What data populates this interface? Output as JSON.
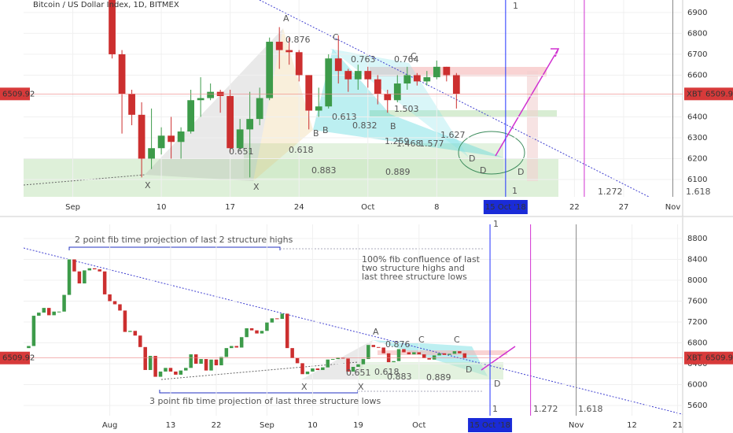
{
  "chart_data": [
    {
      "type": "candlestick",
      "title": "Bitcoin / US Dollar Index, 1D, BITMEX",
      "x": [
        "2018-09-05",
        "2018-09-06",
        "2018-09-07",
        "2018-09-08",
        "2018-09-09",
        "2018-09-10",
        "2018-09-11",
        "2018-09-12",
        "2018-09-13",
        "2018-09-14",
        "2018-09-15",
        "2018-09-16",
        "2018-09-17",
        "2018-09-18",
        "2018-09-19",
        "2018-09-20",
        "2018-09-21",
        "2018-09-22",
        "2018-09-23",
        "2018-09-24",
        "2018-09-25",
        "2018-09-26",
        "2018-09-27",
        "2018-09-28",
        "2018-09-29",
        "2018-09-30",
        "2018-10-01",
        "2018-10-02",
        "2018-10-03",
        "2018-10-04",
        "2018-10-05",
        "2018-10-06",
        "2018-10-07",
        "2018-10-08",
        "2018-10-09",
        "2018-10-10"
      ],
      "open": [
        7360,
        6700,
        6510,
        6410,
        6200,
        6250,
        6310,
        6280,
        6330,
        6480,
        6490,
        6520,
        6500,
        6250,
        6340,
        6390,
        6490,
        6760,
        6720,
        6710,
        6600,
        6430,
        6450,
        6680,
        6620,
        6580,
        6620,
        6580,
        6510,
        6480,
        6560,
        6600,
        6570,
        6590,
        6640,
        6600
      ],
      "high": [
        7400,
        6720,
        6530,
        6470,
        6440,
        6350,
        6400,
        6350,
        6530,
        6590,
        6560,
        6530,
        6530,
        6390,
        6520,
        6540,
        6780,
        6830,
        6780,
        6720,
        6600,
        6540,
        6700,
        6790,
        6630,
        6650,
        6640,
        6600,
        6530,
        6600,
        6640,
        6610,
        6620,
        6670,
        6640,
        6610
      ],
      "low": [
        6680,
        6320,
        6360,
        6110,
        6150,
        6220,
        6200,
        6200,
        6320,
        6400,
        6480,
        6420,
        6230,
        6240,
        6110,
        6360,
        6480,
        6630,
        6650,
        6570,
        6340,
        6400,
        6440,
        6560,
        6520,
        6530,
        6540,
        6460,
        6420,
        6470,
        6530,
        6550,
        6550,
        6580,
        6570,
        6440
      ],
      "close": [
        6700,
        6510,
        6410,
        6200,
        6250,
        6310,
        6280,
        6330,
        6480,
        6490,
        6520,
        6500,
        6250,
        6340,
        6390,
        6490,
        6760,
        6720,
        6710,
        6600,
        6430,
        6450,
        6680,
        6620,
        6580,
        6620,
        6580,
        6510,
        6480,
        6560,
        6600,
        6570,
        6590,
        6640,
        6600,
        6510
      ],
      "up_color": "#3d9b4a",
      "down_color": "#cc2f2f",
      "xlim": [
        "2018-08-27",
        "2018-11-02"
      ],
      "ylim": [
        6017,
        6960
      ],
      "yticks": [
        6100,
        6200,
        6300,
        6400,
        6500,
        6600,
        6700,
        6800,
        6900
      ],
      "xticks": [
        {
          "value": "2018-09-01",
          "label": "Sep"
        },
        {
          "value": "2018-09-10",
          "label": "10"
        },
        {
          "value": "2018-09-17",
          "label": "17"
        },
        {
          "value": "2018-09-24",
          "label": "24"
        },
        {
          "value": "2018-10-01",
          "label": "Oct"
        },
        {
          "value": "2018-10-08",
          "label": "8"
        },
        {
          "value": "2018-10-22",
          "label": "22"
        },
        {
          "value": "2018-10-27",
          "label": "27"
        },
        {
          "value": "2018-11-01",
          "label": "Nov"
        }
      ],
      "highlight_tick": {
        "value": "2018-10-15",
        "label": "15 Oct '18"
      },
      "last_price": 6509.92,
      "symbol": "XBT",
      "vlines": [
        {
          "x": "2018-10-15",
          "color": "#2030ff"
        },
        {
          "x": "2018-10-23",
          "color": "#d030d0"
        },
        {
          "x": "2018-11-01",
          "color": "#888888"
        }
      ],
      "annotations": [
        "X",
        "A",
        "0.876",
        "0.651",
        "0.618",
        "0.883",
        "0.889",
        "X",
        "B",
        "B",
        "C",
        "D",
        "D",
        "D",
        "1.272",
        "1.618",
        "1",
        "1",
        "0.613",
        "1.503",
        "1.468",
        "1.577",
        "1.627",
        "B",
        "C",
        "0.763",
        "0.764",
        "0.832",
        "1.259"
      ]
    },
    {
      "type": "candlestick",
      "x": [
        "2018-07-16",
        "2018-07-17",
        "2018-07-18",
        "2018-07-19",
        "2018-07-20",
        "2018-07-21",
        "2018-07-22",
        "2018-07-23",
        "2018-07-24",
        "2018-07-25",
        "2018-07-26",
        "2018-07-27",
        "2018-07-28",
        "2018-07-29",
        "2018-07-30",
        "2018-07-31",
        "2018-08-01",
        "2018-08-02",
        "2018-08-03",
        "2018-08-04",
        "2018-08-05",
        "2018-08-06",
        "2018-08-07",
        "2018-08-08",
        "2018-08-09",
        "2018-08-10",
        "2018-08-11",
        "2018-08-12",
        "2018-08-13",
        "2018-08-14",
        "2018-08-15",
        "2018-08-16",
        "2018-08-17",
        "2018-08-18",
        "2018-08-19",
        "2018-08-20",
        "2018-08-21",
        "2018-08-22",
        "2018-08-23",
        "2018-08-24",
        "2018-08-25",
        "2018-08-26",
        "2018-08-27",
        "2018-08-28",
        "2018-08-29",
        "2018-08-30",
        "2018-08-31",
        "2018-09-01",
        "2018-09-02",
        "2018-09-03",
        "2018-09-04",
        "2018-09-05",
        "2018-09-06",
        "2018-09-07",
        "2018-09-08",
        "2018-09-09",
        "2018-09-10",
        "2018-09-11",
        "2018-09-12",
        "2018-09-13",
        "2018-09-14",
        "2018-09-15",
        "2018-09-16",
        "2018-09-17",
        "2018-09-18",
        "2018-09-19",
        "2018-09-20",
        "2018-09-21",
        "2018-09-22",
        "2018-09-23",
        "2018-09-24",
        "2018-09-25",
        "2018-09-26",
        "2018-09-27",
        "2018-09-28",
        "2018-09-29",
        "2018-09-30",
        "2018-10-01",
        "2018-10-02",
        "2018-10-03",
        "2018-10-04",
        "2018-10-05",
        "2018-10-06",
        "2018-10-07",
        "2018-10-08",
        "2018-10-09",
        "2018-10-10"
      ],
      "open": [
        6700,
        6740,
        7320,
        7380,
        7470,
        7330,
        7400,
        7400,
        7720,
        8400,
        8170,
        7940,
        8190,
        8230,
        8210,
        8170,
        7730,
        7600,
        7540,
        7420,
        7010,
        7030,
        6940,
        6720,
        6280,
        6550,
        6150,
        6250,
        6320,
        6250,
        6190,
        6270,
        6320,
        6580,
        6400,
        6490,
        6270,
        6480,
        6370,
        6530,
        6700,
        6740,
        6710,
        6910,
        7080,
        7040,
        6980,
        7030,
        7190,
        7270,
        7260,
        7360,
        6700,
        6510,
        6410,
        6200,
        6250,
        6310,
        6280,
        6330,
        6480,
        6490,
        6520,
        6500,
        6250,
        6340,
        6390,
        6490,
        6760,
        6720,
        6710,
        6600,
        6430,
        6450,
        6680,
        6620,
        6580,
        6620,
        6580,
        6510,
        6480,
        6560,
        6600,
        6570,
        6590,
        6640,
        6600
      ],
      "close": [
        6740,
        7320,
        7380,
        7470,
        7330,
        7400,
        7400,
        7720,
        8400,
        8170,
        7940,
        8190,
        8230,
        8210,
        8170,
        7730,
        7600,
        7540,
        7420,
        7010,
        7030,
        6940,
        6720,
        6280,
        6550,
        6150,
        6250,
        6320,
        6250,
        6190,
        6270,
        6320,
        6580,
        6400,
        6490,
        6270,
        6480,
        6370,
        6530,
        6700,
        6740,
        6710,
        6910,
        7080,
        7040,
        6980,
        7030,
        7190,
        7270,
        7260,
        7360,
        6700,
        6510,
        6410,
        6200,
        6250,
        6310,
        6280,
        6330,
        6480,
        6490,
        6520,
        6500,
        6250,
        6340,
        6390,
        6490,
        6760,
        6720,
        6710,
        6600,
        6430,
        6450,
        6680,
        6620,
        6580,
        6620,
        6580,
        6510,
        6480,
        6560,
        6600,
        6570,
        6590,
        6640,
        6600,
        6510
      ],
      "up_color": "#3d9b4a",
      "down_color": "#cc2f2f",
      "xlim": [
        "2018-07-15",
        "2018-11-22"
      ],
      "ylim": [
        5404,
        9072
      ],
      "yticks": [
        5600,
        6000,
        6400,
        6800,
        7200,
        7600,
        8000,
        8400,
        8800
      ],
      "xticks": [
        {
          "value": "2018-08-01",
          "label": "Aug"
        },
        {
          "value": "2018-08-13",
          "label": "13"
        },
        {
          "value": "2018-08-22",
          "label": "22"
        },
        {
          "value": "2018-09-01",
          "label": "Sep"
        },
        {
          "value": "2018-09-10",
          "label": "10"
        },
        {
          "value": "2018-09-19",
          "label": "19"
        },
        {
          "value": "2018-10-01",
          "label": "Oct"
        },
        {
          "value": "2018-11-01",
          "label": "Nov"
        },
        {
          "value": "2018-11-12",
          "label": "12"
        },
        {
          "value": "2018-11-21",
          "label": "21"
        }
      ],
      "highlight_tick": {
        "value": "2018-10-15",
        "label": "15 Oct '18"
      },
      "last_price": 6509.92,
      "symbol": "XBT",
      "vlines": [
        {
          "x": "2018-10-15",
          "color": "#2030ff"
        },
        {
          "x": "2018-10-23",
          "color": "#d030d0"
        },
        {
          "x": "2018-11-01",
          "color": "#888888"
        }
      ],
      "annotations": [
        "2 point fib time projection of last 2 structure highs",
        "100% fib confluence of last",
        "two structure highs and",
        "last three structure lows",
        "3 point fib time projection of last three structure lows",
        "X",
        "X",
        "A",
        "0.876",
        "0.651",
        "0.618",
        "0.883",
        "0.889",
        "C",
        "C",
        "D",
        "D",
        "1.272",
        "1.618",
        "1",
        "1"
      ]
    }
  ]
}
